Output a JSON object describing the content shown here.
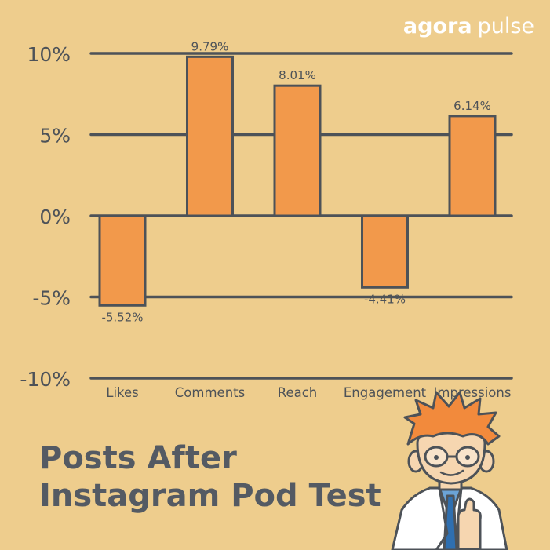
{
  "brand": {
    "part1": "agora",
    "part2": "pulse"
  },
  "title": {
    "line1": "Posts After",
    "line2": "Instagram Pod Test"
  },
  "colors": {
    "background": "#EECD8D",
    "bar": "#F2994B",
    "stroke": "#4D5258",
    "text": "#4D5258"
  },
  "chart_data": {
    "type": "bar",
    "title": "Posts After Instagram Pod Test",
    "categories": [
      "Likes",
      "Comments",
      "Reach",
      "Engagement",
      "Impressions"
    ],
    "values": [
      -5.52,
      9.79,
      8.01,
      -4.41,
      6.14
    ],
    "value_labels": [
      "-5.52%",
      "9.79%",
      "8.01%",
      "-4.41%",
      "6.14%"
    ],
    "yticks": [
      10,
      5,
      0,
      -5,
      -10
    ],
    "ytick_labels": [
      "10%",
      "5%",
      "0%",
      "-5%",
      "-10%"
    ],
    "ylim": [
      -10,
      10
    ],
    "xlabel": "",
    "ylabel": "",
    "grid": true,
    "legend": "none"
  },
  "illustration": "cartoon-scientist-thumbs-up"
}
